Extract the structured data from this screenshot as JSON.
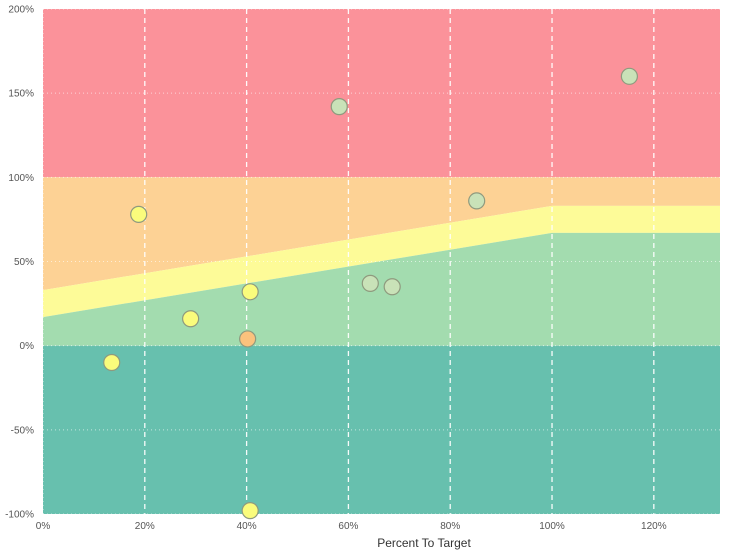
{
  "chart_data": {
    "type": "scatter",
    "title": "",
    "xlabel": "Percent To Target",
    "ylabel": "",
    "xlim": [
      0,
      1.33
    ],
    "ylim": [
      -1.0,
      2.0
    ],
    "x_ticks": [
      "0%",
      "20%",
      "40%",
      "60%",
      "80%",
      "100%",
      "120%"
    ],
    "x_tick_values": [
      0,
      0.2,
      0.4,
      0.6,
      0.8,
      1.0,
      1.2
    ],
    "y_ticks": [
      "200%",
      "150%",
      "100%",
      "50%",
      "0%",
      "-50%",
      "-100%"
    ],
    "y_tick_values": [
      2.0,
      1.5,
      1.0,
      0.5,
      0.0,
      -0.5,
      -1.0
    ],
    "grid": {
      "vertical": "dashed",
      "horizontal": "dotted"
    },
    "bands": [
      {
        "name": "red",
        "color": "#fb929a",
        "points": [
          [
            0,
            1.0
          ],
          [
            1.33,
            1.0
          ],
          [
            1.33,
            2.0
          ],
          [
            0,
            2.0
          ]
        ]
      },
      {
        "name": "orange",
        "color": "#fdd295",
        "points": [
          [
            0,
            0.33
          ],
          [
            1.0,
            0.83
          ],
          [
            1.33,
            0.83
          ],
          [
            1.33,
            1.0
          ],
          [
            0,
            1.0
          ]
        ]
      },
      {
        "name": "yellow",
        "color": "#fdfb98",
        "points": [
          [
            0,
            0.17
          ],
          [
            1.0,
            0.67
          ],
          [
            1.33,
            0.67
          ],
          [
            1.33,
            0.83
          ],
          [
            1.0,
            0.83
          ],
          [
            0,
            0.33
          ]
        ]
      },
      {
        "name": "light-green",
        "color": "#a3dcaf",
        "points": [
          [
            0,
            0.0
          ],
          [
            1.33,
            0.0
          ],
          [
            1.33,
            0.67
          ],
          [
            1.0,
            0.67
          ],
          [
            0,
            0.17
          ]
        ]
      },
      {
        "name": "teal",
        "color": "#67c0ae",
        "points": [
          [
            0,
            -1.0
          ],
          [
            1.33,
            -1.0
          ],
          [
            1.33,
            0.0
          ],
          [
            0,
            0.0
          ]
        ]
      }
    ],
    "points": [
      {
        "x": 0.135,
        "y": -0.1,
        "color": "#fafc7c"
      },
      {
        "x": 0.188,
        "y": 0.78,
        "color": "#fafc7c"
      },
      {
        "x": 0.29,
        "y": 0.16,
        "color": "#fafc7c"
      },
      {
        "x": 0.402,
        "y": 0.04,
        "color": "#fbc27d"
      },
      {
        "x": 0.407,
        "y": 0.32,
        "color": "#fafc7c"
      },
      {
        "x": 0.407,
        "y": -0.98,
        "color": "#fafc7c"
      },
      {
        "x": 0.582,
        "y": 1.42,
        "color": "#c9e2b8"
      },
      {
        "x": 0.643,
        "y": 0.37,
        "color": "#c9e2b8"
      },
      {
        "x": 0.686,
        "y": 0.35,
        "color": "#c9e2b8"
      },
      {
        "x": 0.852,
        "y": 0.86,
        "color": "#c9e2b8"
      },
      {
        "x": 1.152,
        "y": 1.6,
        "color": "#c9e2b8"
      }
    ]
  }
}
